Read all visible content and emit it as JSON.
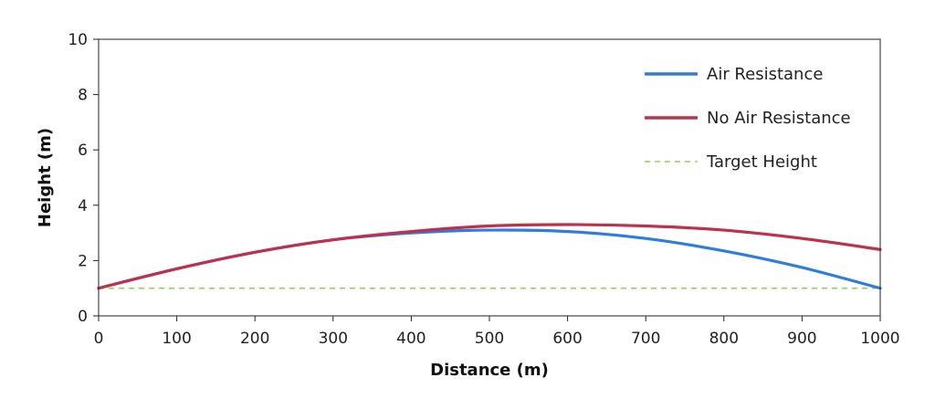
{
  "chart_data": {
    "type": "line",
    "xlabel": "Distance (m)",
    "ylabel": "Height (m)",
    "xlim": [
      0,
      1000
    ],
    "ylim": [
      0,
      10
    ],
    "xticks": [
      0,
      100,
      200,
      300,
      400,
      500,
      600,
      700,
      800,
      900,
      1000
    ],
    "yticks": [
      0,
      2,
      4,
      6,
      8,
      10
    ],
    "grid": false,
    "legend_position": "top-right",
    "series": [
      {
        "name": "Air Resistance",
        "color": "#2f7de1",
        "style": "solid",
        "x": [
          0,
          100,
          200,
          300,
          400,
          500,
          600,
          700,
          800,
          900,
          1000
        ],
        "y": [
          1.0,
          1.7,
          2.3,
          2.75,
          3.0,
          3.1,
          3.05,
          2.8,
          2.35,
          1.75,
          1.0
        ]
      },
      {
        "name": "No Air Resistance",
        "color": "#c0304a",
        "style": "solid",
        "x": [
          0,
          100,
          200,
          300,
          400,
          500,
          600,
          700,
          800,
          900,
          1000
        ],
        "y": [
          1.0,
          1.7,
          2.3,
          2.75,
          3.05,
          3.25,
          3.3,
          3.25,
          3.1,
          2.8,
          2.4
        ]
      },
      {
        "name": "Target Height",
        "color": "#8fd14f",
        "style": "dashed",
        "x": [
          0,
          1000
        ],
        "y": [
          1.0,
          1.0
        ]
      }
    ]
  }
}
